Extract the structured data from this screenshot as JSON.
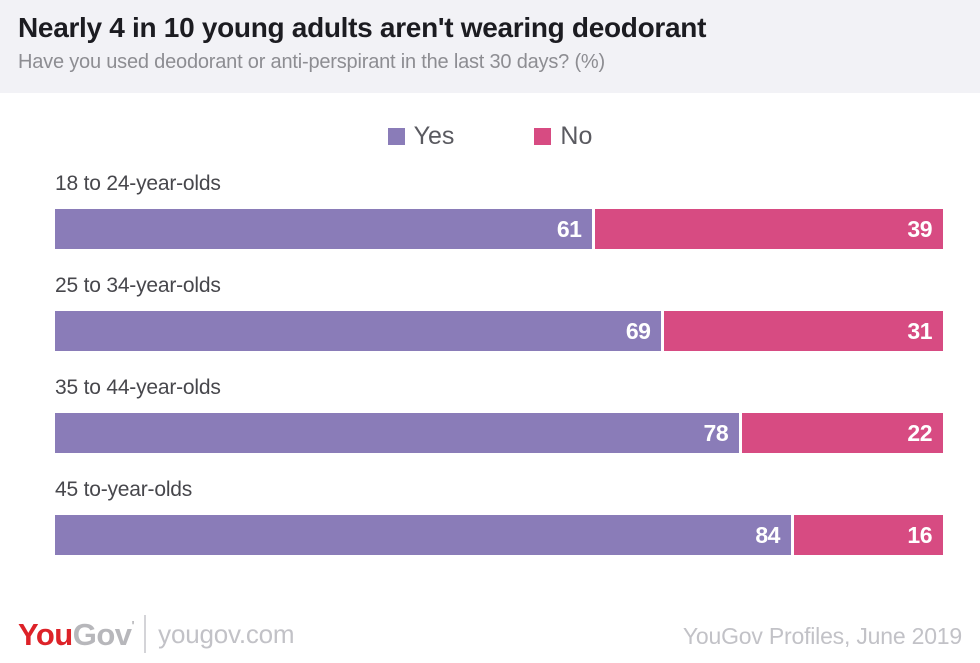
{
  "header": {
    "title": "Nearly 4 in 10 young adults aren't wearing deodorant",
    "subtitle": "Have you used deodorant or anti-perspirant in the last 30 days? (%)"
  },
  "chart_data": {
    "type": "bar",
    "orientation": "horizontal-stacked",
    "title": "Nearly 4 in 10 young adults aren't wearing deodorant",
    "subtitle": "Have you used deodorant or anti-perspirant in the last 30 days? (%)",
    "categories": [
      "18 to 24-year-olds",
      "25 to 34-year-olds",
      "35 to 44-year-olds",
      "45 to-year-olds"
    ],
    "series": [
      {
        "name": "Yes",
        "color": "#8a7cb8",
        "values": [
          61,
          69,
          78,
          84
        ]
      },
      {
        "name": "No",
        "color": "#d74b82",
        "values": [
          39,
          31,
          22,
          16
        ]
      }
    ],
    "xlim": [
      0,
      100
    ],
    "grid": false,
    "legend_position": "top-center",
    "value_labels": "inside-end-white"
  },
  "footer": {
    "logo_you": "You",
    "logo_gov": "Gov",
    "logo_mark": "'",
    "site": "yougov.com",
    "source": "YouGov Profiles, June 2019"
  },
  "colors": {
    "yes": "#8a7cb8",
    "no": "#d74b82",
    "header_band": "#f2f2f6",
    "title": "#1c1c21",
    "subtitle": "#8d8d92",
    "legend_text": "#5a5a60",
    "category_label": "#47474c",
    "logo_red": "#dd2228",
    "logo_gray": "#b7b7bb",
    "footer_text": "#c2c2c7"
  }
}
